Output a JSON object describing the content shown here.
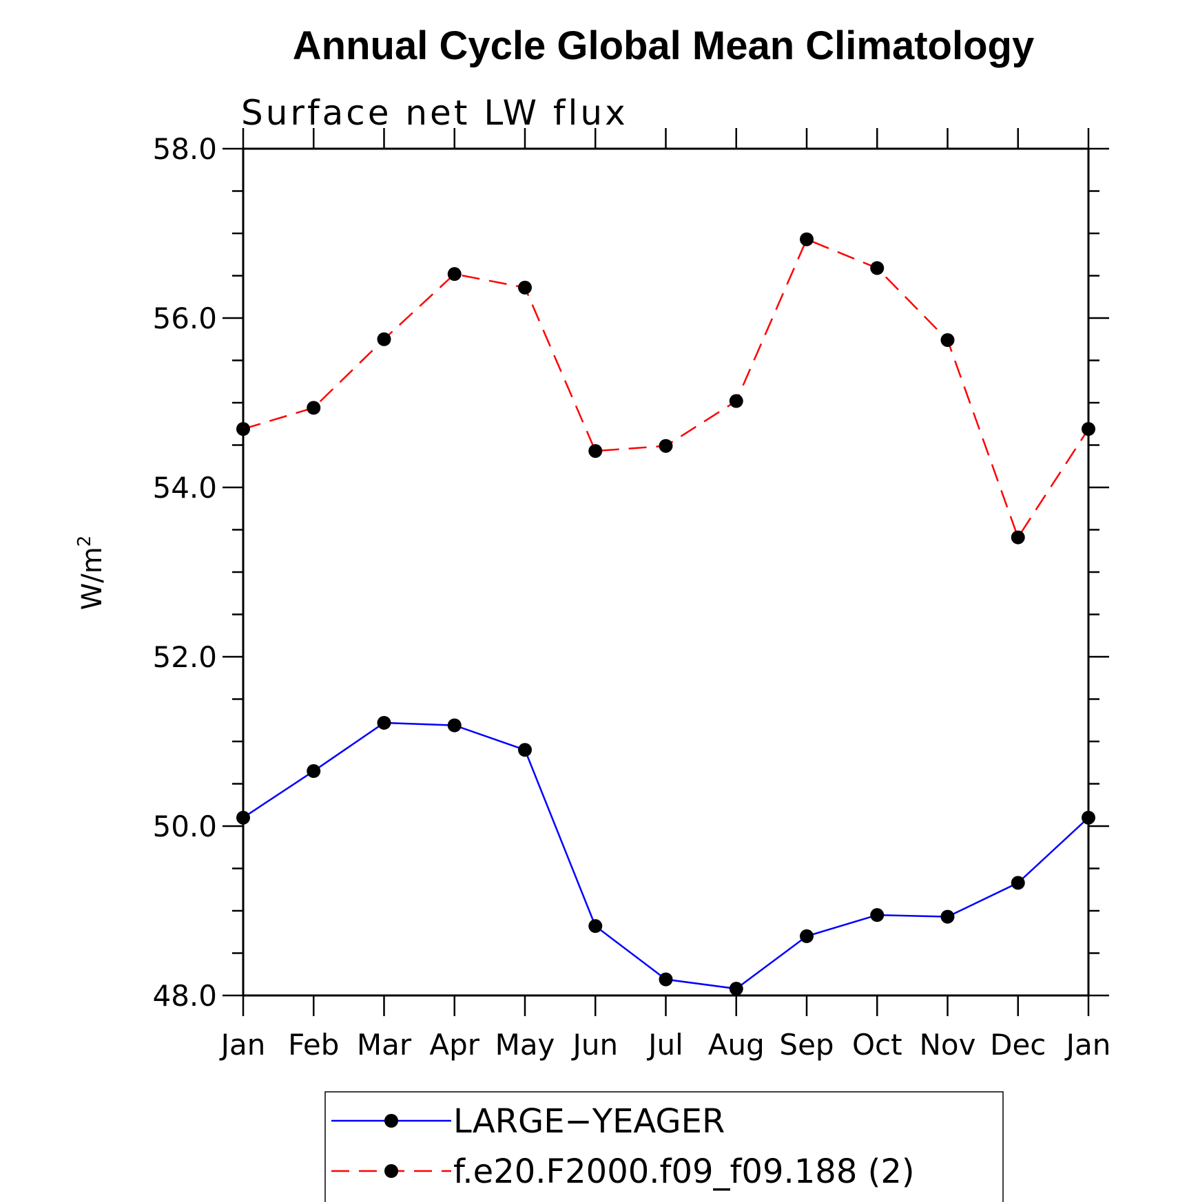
{
  "chart_data": {
    "type": "line",
    "title": "Annual Cycle Global Mean Climatology",
    "subtitle": "Surface net LW flux",
    "xlabel": "",
    "ylabel": "W/m",
    "ylabel_sup": "2",
    "categories": [
      "Jan",
      "Feb",
      "Mar",
      "Apr",
      "May",
      "Jun",
      "Jul",
      "Aug",
      "Sep",
      "Oct",
      "Nov",
      "Dec",
      "Jan"
    ],
    "ylim": [
      48.0,
      58.0
    ],
    "yticks": [
      "48.0",
      "50.0",
      "52.0",
      "54.0",
      "56.0",
      "58.0"
    ],
    "grid": false,
    "legend_position": "bottom",
    "series": [
      {
        "name": "LARGE−YEAGER",
        "color": "#0000ff",
        "dash": "solid",
        "marker_color": "#000000",
        "values": [
          50.1,
          50.65,
          51.22,
          51.19,
          50.9,
          48.82,
          48.19,
          48.08,
          48.7,
          48.95,
          48.93,
          49.33,
          50.1
        ]
      },
      {
        "name": "f.e20.F2000.f09_f09.188 (2)",
        "color": "#ff0000",
        "dash": "dashed",
        "marker_color": "#000000",
        "values": [
          54.69,
          54.94,
          55.75,
          56.52,
          56.36,
          54.43,
          54.49,
          55.02,
          56.93,
          56.59,
          55.74,
          53.41,
          54.69
        ]
      }
    ]
  }
}
